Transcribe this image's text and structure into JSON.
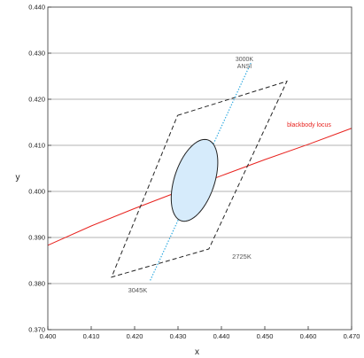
{
  "chart_data": {
    "type": "line",
    "xlabel": "x",
    "ylabel": "y",
    "xlim": [
      0.4,
      0.47
    ],
    "ylim": [
      0.37,
      0.44
    ],
    "x_ticks": [
      "0.400",
      "0.410",
      "0.420",
      "0.430",
      "0.440",
      "0.450",
      "0.460",
      "0.470"
    ],
    "y_ticks": [
      "0.370",
      "0.380",
      "0.390",
      "0.400",
      "0.410",
      "0.420",
      "0.430",
      "0.440"
    ],
    "y_tick_values": [
      0.37,
      0.38,
      0.39,
      0.4,
      0.41,
      0.42,
      0.43,
      0.44
    ],
    "x_tick_values": [
      0.4,
      0.41,
      0.42,
      0.43,
      0.44,
      0.45,
      0.46,
      0.47
    ],
    "grid": "horizontal",
    "series": [
      {
        "name": "blackbody locus",
        "color": "#e8231f",
        "style": "solid",
        "points": [
          [
            0.4,
            0.3883
          ],
          [
            0.41,
            0.3925
          ],
          [
            0.42,
            0.3963
          ],
          [
            0.43,
            0.3999
          ],
          [
            0.44,
            0.4034
          ],
          [
            0.45,
            0.4069
          ],
          [
            0.46,
            0.4102
          ],
          [
            0.47,
            0.4137
          ]
        ]
      },
      {
        "name": "ANSI quadrangle",
        "color": "#222222",
        "style": "dashed",
        "points": [
          [
            0.4299,
            0.4165
          ],
          [
            0.4551,
            0.4239
          ],
          [
            0.4371,
            0.3875
          ],
          [
            0.4147,
            0.3814
          ],
          [
            0.4299,
            0.4165
          ]
        ]
      },
      {
        "name": "3000K line",
        "color": "#2aa8e0",
        "style": "dotted",
        "points": [
          [
            0.4236,
            0.3807
          ],
          [
            0.4468,
            0.4279
          ]
        ]
      }
    ],
    "ellipse": {
      "center": [
        0.4338,
        0.4024
      ],
      "semi_major": 0.0093,
      "semi_minor": 0.0046,
      "rotation_deg": 70,
      "fill": "#d6ebfb",
      "stroke": "#222222"
    },
    "annotations": [
      {
        "lines": [
          "3000K",
          "ANSI"
        ],
        "at": [
          0.4453,
          0.4283
        ],
        "style": "small"
      },
      {
        "lines": [
          "blackbody locus"
        ],
        "at": [
          0.4602,
          0.414
        ],
        "style": "locus"
      },
      {
        "lines": [
          "2725K"
        ],
        "at": [
          0.4447,
          0.3854
        ],
        "style": "big"
      },
      {
        "lines": [
          "3045K"
        ],
        "at": [
          0.4207,
          0.3781
        ],
        "style": "big"
      }
    ]
  }
}
